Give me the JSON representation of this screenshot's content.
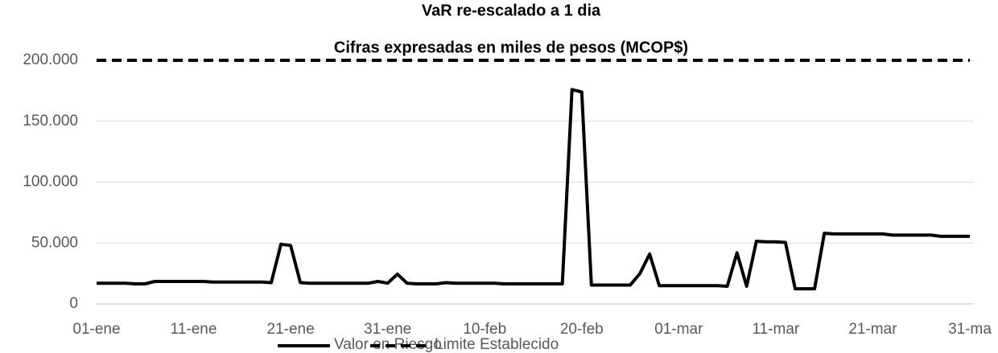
{
  "chart_data": {
    "type": "line",
    "title": "VaR re-escalado a 1 dia",
    "subtitle": "Cifras expresadas en miles de pesos (MCOP$)",
    "categories": [
      "01-ene",
      null,
      null,
      null,
      null,
      null,
      null,
      null,
      null,
      null,
      "11-ene",
      null,
      null,
      null,
      null,
      null,
      null,
      null,
      null,
      null,
      "21-ene",
      null,
      null,
      null,
      null,
      null,
      null,
      null,
      null,
      null,
      "31-ene",
      null,
      null,
      null,
      null,
      null,
      null,
      null,
      null,
      null,
      "10-feb",
      null,
      null,
      null,
      null,
      null,
      null,
      null,
      null,
      null,
      "20-feb",
      null,
      null,
      null,
      null,
      null,
      null,
      null,
      null,
      null,
      "01-mar",
      null,
      null,
      null,
      null,
      null,
      null,
      null,
      null,
      null,
      "11-mar",
      null,
      null,
      null,
      null,
      null,
      null,
      null,
      null,
      null,
      "21-mar",
      null,
      null,
      null,
      null,
      null,
      null,
      null,
      null,
      null,
      "31-ma"
    ],
    "series": [
      {
        "name": "Valor en Riesgo",
        "color": "#000000",
        "dashed": false,
        "values": [
          17000,
          17000,
          17000,
          17000,
          16500,
          16500,
          18500,
          18500,
          18500,
          18500,
          18500,
          18500,
          18000,
          18000,
          18000,
          18000,
          18000,
          18000,
          17500,
          49000,
          48000,
          17500,
          17000,
          17000,
          17000,
          17000,
          17000,
          17000,
          17000,
          18500,
          17000,
          24500,
          17000,
          16500,
          16500,
          16500,
          17500,
          17000,
          17000,
          17000,
          17000,
          17000,
          16500,
          16500,
          16500,
          16500,
          16500,
          16500,
          16500,
          176000,
          174000,
          15500,
          15500,
          15500,
          15500,
          15500,
          25000,
          41000,
          15000,
          15000,
          15000,
          15000,
          15000,
          15000,
          15000,
          14500,
          42000,
          14500,
          51500,
          51000,
          51000,
          50500,
          12500,
          12500,
          12500,
          58000,
          57500,
          57500,
          57500,
          57500,
          57500,
          57500,
          56500,
          56500,
          56500,
          56500,
          56500,
          55500,
          55500,
          55500,
          55500
        ]
      },
      {
        "name": "Limite Establecido",
        "color": "#000000",
        "dashed": true,
        "values": [
          200000,
          200000,
          200000,
          200000,
          200000,
          200000,
          200000,
          200000,
          200000,
          200000,
          200000,
          200000,
          200000,
          200000,
          200000,
          200000,
          200000,
          200000,
          200000,
          200000,
          200000,
          200000,
          200000,
          200000,
          200000,
          200000,
          200000,
          200000,
          200000,
          200000,
          200000,
          200000,
          200000,
          200000,
          200000,
          200000,
          200000,
          200000,
          200000,
          200000,
          200000,
          200000,
          200000,
          200000,
          200000,
          200000,
          200000,
          200000,
          200000,
          200000,
          200000,
          200000,
          200000,
          200000,
          200000,
          200000,
          200000,
          200000,
          200000,
          200000,
          200000,
          200000,
          200000,
          200000,
          200000,
          200000,
          200000,
          200000,
          200000,
          200000,
          200000,
          200000,
          200000,
          200000,
          200000,
          200000,
          200000,
          200000,
          200000,
          200000,
          200000,
          200000,
          200000,
          200000,
          200000,
          200000,
          200000,
          200000,
          200000,
          200000,
          200000
        ]
      }
    ],
    "ylim": [
      0,
      200000
    ],
    "yticks": [
      0,
      {
        "value": 50000,
        "label": "50.000"
      },
      {
        "value": 100000,
        "label": "100.000"
      },
      {
        "value": 150000,
        "label": "150.000"
      },
      {
        "value": 200000,
        "label": "200.000"
      }
    ],
    "grid": true,
    "legend": "bottom"
  }
}
